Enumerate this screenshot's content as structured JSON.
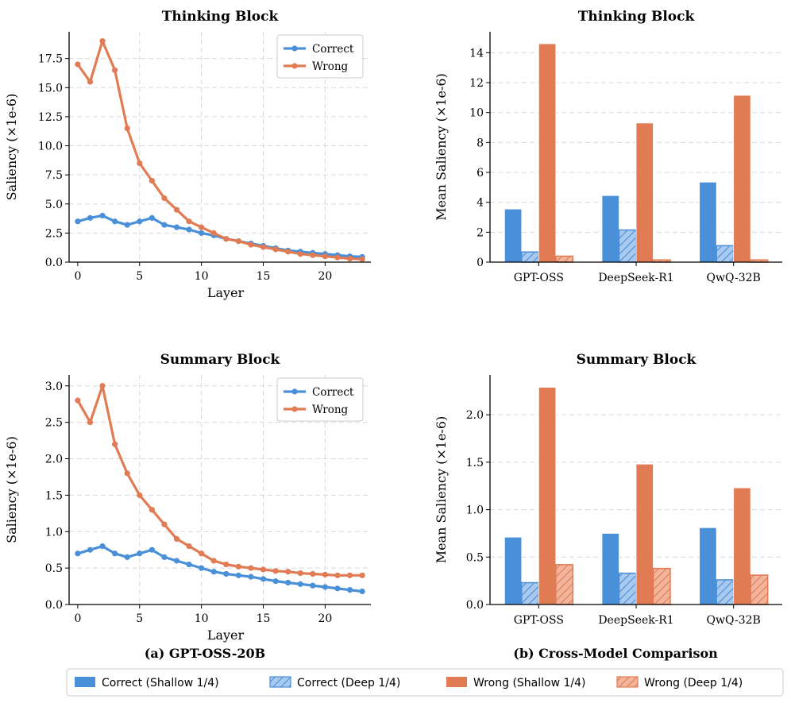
{
  "colors": {
    "correct": "#4a90d9",
    "correct_light": "#a9c9ee",
    "wrong": "#e07b54",
    "wrong_light": "#f2b49a",
    "axis": "#000000",
    "grid": "#d9d9d9"
  },
  "captions": {
    "left": "(a) GPT-OSS-20B",
    "right": "(b) Cross-Model Comparison"
  },
  "legend_bottom": [
    {
      "label": "Correct (Shallow 1/4)",
      "color_key": "correct",
      "hatch": false
    },
    {
      "label": "Correct (Deep 1/4)",
      "color_key": "correct",
      "hatch": true
    },
    {
      "label": "Wrong (Shallow 1/4)",
      "color_key": "wrong",
      "hatch": false
    },
    {
      "label": "Wrong (Deep 1/4)",
      "color_key": "wrong",
      "hatch": true
    }
  ],
  "chart_data": [
    {
      "id": "thinking-line",
      "type": "line",
      "title": "Thinking Block",
      "xlabel": "Layer",
      "ylabel": "Saliency (×1e-6)",
      "xlim": [
        -0.7,
        23.7
      ],
      "ylim": [
        0,
        19.8
      ],
      "xticks": [
        0,
        5,
        10,
        15,
        20
      ],
      "yticks": [
        0,
        2.5,
        5,
        7.5,
        10,
        12.5,
        15,
        17.5
      ],
      "ytick_labels": [
        "0.0",
        "2.5",
        "5.0",
        "7.5",
        "10.0",
        "12.5",
        "15.0",
        "17.5"
      ],
      "legend_position": "top-right",
      "x": [
        0,
        1,
        2,
        3,
        4,
        5,
        6,
        7,
        8,
        9,
        10,
        11,
        12,
        13,
        14,
        15,
        16,
        17,
        18,
        19,
        20,
        21,
        22,
        23
      ],
      "series": [
        {
          "name": "Correct",
          "color_key": "correct",
          "values": [
            3.5,
            3.8,
            4.0,
            3.5,
            3.2,
            3.5,
            3.8,
            3.2,
            3.0,
            2.8,
            2.5,
            2.3,
            2.0,
            1.8,
            1.6,
            1.4,
            1.2,
            1.0,
            0.9,
            0.8,
            0.7,
            0.6,
            0.5,
            0.45
          ]
        },
        {
          "name": "Wrong",
          "color_key": "wrong",
          "values": [
            17.0,
            15.5,
            19.0,
            16.5,
            11.5,
            8.5,
            7.0,
            5.5,
            4.5,
            3.5,
            3.0,
            2.5,
            2.0,
            1.8,
            1.5,
            1.3,
            1.1,
            0.9,
            0.7,
            0.6,
            0.5,
            0.4,
            0.3,
            0.25
          ]
        }
      ]
    },
    {
      "id": "thinking-bar",
      "type": "bar",
      "title": "Thinking Block",
      "xlabel": "",
      "ylabel": "Mean Saliency (×1e-6)",
      "ylim": [
        0,
        15.4
      ],
      "yticks": [
        0,
        2,
        4,
        6,
        8,
        10,
        12,
        14
      ],
      "ytick_labels": [
        "0",
        "2",
        "4",
        "6",
        "8",
        "10",
        "12",
        "14"
      ],
      "categories": [
        "GPT-OSS",
        "DeepSeek-R1",
        "QwQ-32B"
      ],
      "series": [
        {
          "name": "Correct (Shallow 1/4)",
          "color_key": "correct",
          "hatch": false,
          "values": [
            3.55,
            4.45,
            5.35
          ]
        },
        {
          "name": "Correct (Deep 1/4)",
          "color_key": "correct",
          "hatch": true,
          "values": [
            0.68,
            2.15,
            1.1
          ]
        },
        {
          "name": "Wrong (Shallow 1/4)",
          "color_key": "wrong",
          "hatch": false,
          "values": [
            14.6,
            9.3,
            11.15
          ]
        },
        {
          "name": "Wrong (Deep 1/4)",
          "color_key": "wrong",
          "hatch": true,
          "values": [
            0.4,
            0.15,
            0.15
          ]
        }
      ]
    },
    {
      "id": "summary-line",
      "type": "line",
      "title": "Summary Block",
      "xlabel": "Layer",
      "ylabel": "Saliency (×1e-6)",
      "xlim": [
        -0.7,
        23.7
      ],
      "ylim": [
        0,
        3.15
      ],
      "xticks": [
        0,
        5,
        10,
        15,
        20
      ],
      "yticks": [
        0,
        0.5,
        1.0,
        1.5,
        2.0,
        2.5,
        3.0
      ],
      "ytick_labels": [
        "0.0",
        "0.5",
        "1.0",
        "1.5",
        "2.0",
        "2.5",
        "3.0"
      ],
      "legend_position": "top-right",
      "x": [
        0,
        1,
        2,
        3,
        4,
        5,
        6,
        7,
        8,
        9,
        10,
        11,
        12,
        13,
        14,
        15,
        16,
        17,
        18,
        19,
        20,
        21,
        22,
        23
      ],
      "series": [
        {
          "name": "Correct",
          "color_key": "correct",
          "values": [
            0.7,
            0.75,
            0.8,
            0.7,
            0.65,
            0.7,
            0.75,
            0.65,
            0.6,
            0.55,
            0.5,
            0.45,
            0.42,
            0.4,
            0.38,
            0.35,
            0.32,
            0.3,
            0.28,
            0.26,
            0.24,
            0.22,
            0.2,
            0.18
          ]
        },
        {
          "name": "Wrong",
          "color_key": "wrong",
          "values": [
            2.8,
            2.5,
            3.0,
            2.2,
            1.8,
            1.5,
            1.3,
            1.1,
            0.9,
            0.8,
            0.7,
            0.6,
            0.55,
            0.52,
            0.5,
            0.48,
            0.46,
            0.45,
            0.43,
            0.42,
            0.41,
            0.4,
            0.4,
            0.4
          ]
        }
      ]
    },
    {
      "id": "summary-bar",
      "type": "bar",
      "title": "Summary Block",
      "xlabel": "",
      "ylabel": "Mean Saliency (×1e-6)",
      "ylim": [
        0,
        2.42
      ],
      "yticks": [
        0,
        0.5,
        1.0,
        1.5,
        2.0
      ],
      "ytick_labels": [
        "0.0",
        "0.5",
        "1.0",
        "1.5",
        "2.0"
      ],
      "categories": [
        "GPT-OSS",
        "DeepSeek-R1",
        "QwQ-32B"
      ],
      "series": [
        {
          "name": "Correct (Shallow 1/4)",
          "color_key": "correct",
          "hatch": false,
          "values": [
            0.71,
            0.75,
            0.81
          ]
        },
        {
          "name": "Correct (Deep 1/4)",
          "color_key": "correct",
          "hatch": true,
          "values": [
            0.23,
            0.33,
            0.26
          ]
        },
        {
          "name": "Wrong (Shallow 1/4)",
          "color_key": "wrong",
          "hatch": false,
          "values": [
            2.29,
            1.48,
            1.23
          ]
        },
        {
          "name": "Wrong (Deep 1/4)",
          "color_key": "wrong",
          "hatch": true,
          "values": [
            0.42,
            0.38,
            0.31
          ]
        }
      ]
    }
  ]
}
